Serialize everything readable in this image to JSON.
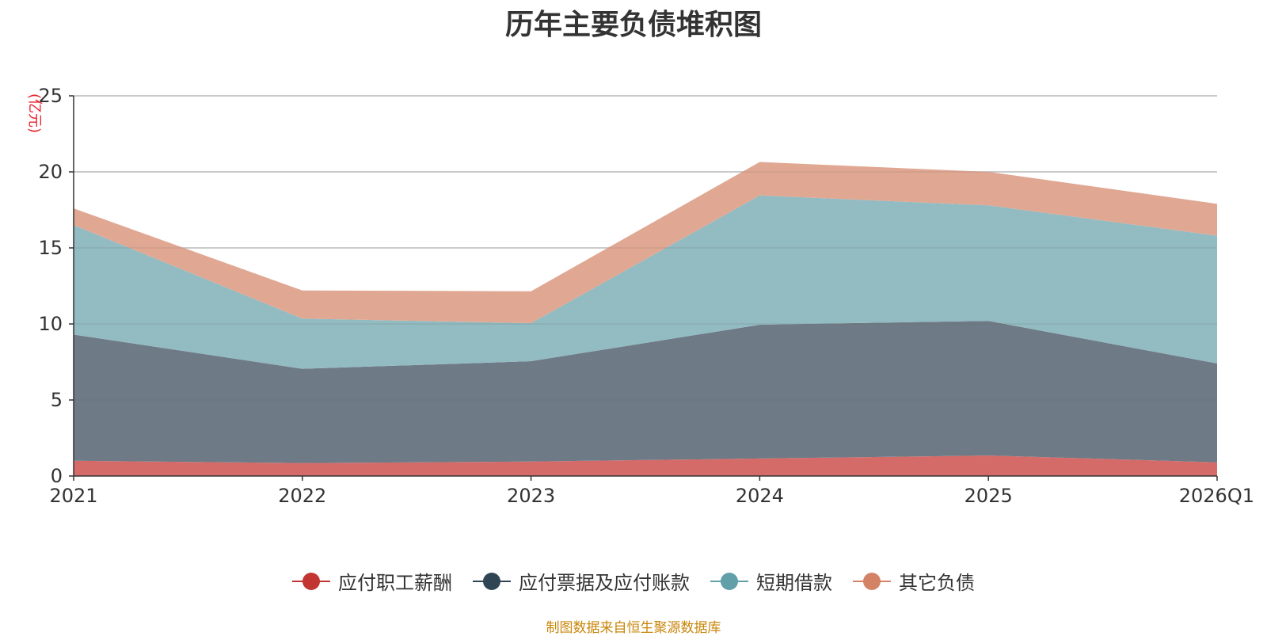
{
  "chart_data": {
    "type": "area",
    "stacked": true,
    "title": "历年主要负债堆积图",
    "unit": "(亿元)",
    "categories": [
      "2021",
      "2022",
      "2023",
      "2024",
      "2025",
      "2026Q1"
    ],
    "y_ticks": [
      0,
      5,
      10,
      15,
      20,
      25
    ],
    "ylim": [
      0,
      25
    ],
    "grid": true,
    "series": [
      {
        "name": "应付职工薪酬",
        "color": "#c23531",
        "fill": "#d56b69",
        "values": [
          1.0,
          0.85,
          0.95,
          1.15,
          1.35,
          0.9
        ]
      },
      {
        "name": "应付票据及应付账款",
        "color": "#2f4554",
        "fill": "#6e7b87",
        "values": [
          8.3,
          6.2,
          6.6,
          8.8,
          8.85,
          6.5
        ]
      },
      {
        "name": "短期借款",
        "color": "#61a0a8",
        "fill": "#93bbc2",
        "values": [
          7.2,
          3.3,
          2.5,
          8.5,
          7.6,
          8.4
        ]
      },
      {
        "name": "其它负债",
        "color": "#d48265",
        "fill": "#e0a893",
        "values": [
          1.1,
          1.85,
          2.1,
          2.2,
          2.2,
          2.1
        ]
      }
    ]
  },
  "source_text": "制图数据来自恒生聚源数据库"
}
